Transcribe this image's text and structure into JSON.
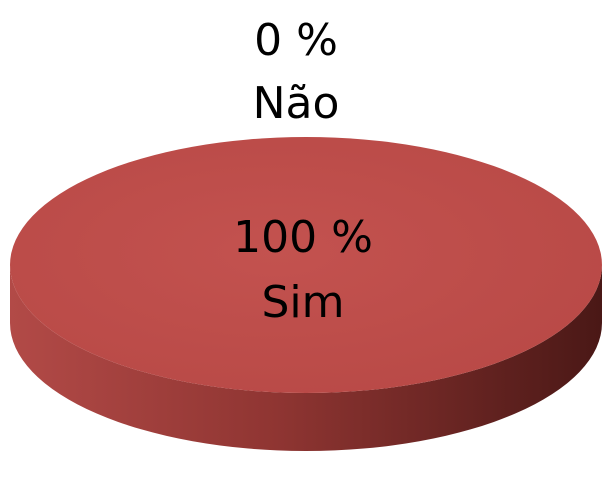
{
  "chart_data": {
    "type": "pie",
    "title": "",
    "style": "3d",
    "categories": [
      "Não",
      "Sim"
    ],
    "values": [
      0,
      100
    ],
    "value_labels": [
      "0 %",
      "100 %"
    ],
    "colors": {
      "Sim": "#c0504d",
      "Não": "#4f81bd"
    },
    "legend": "none"
  }
}
